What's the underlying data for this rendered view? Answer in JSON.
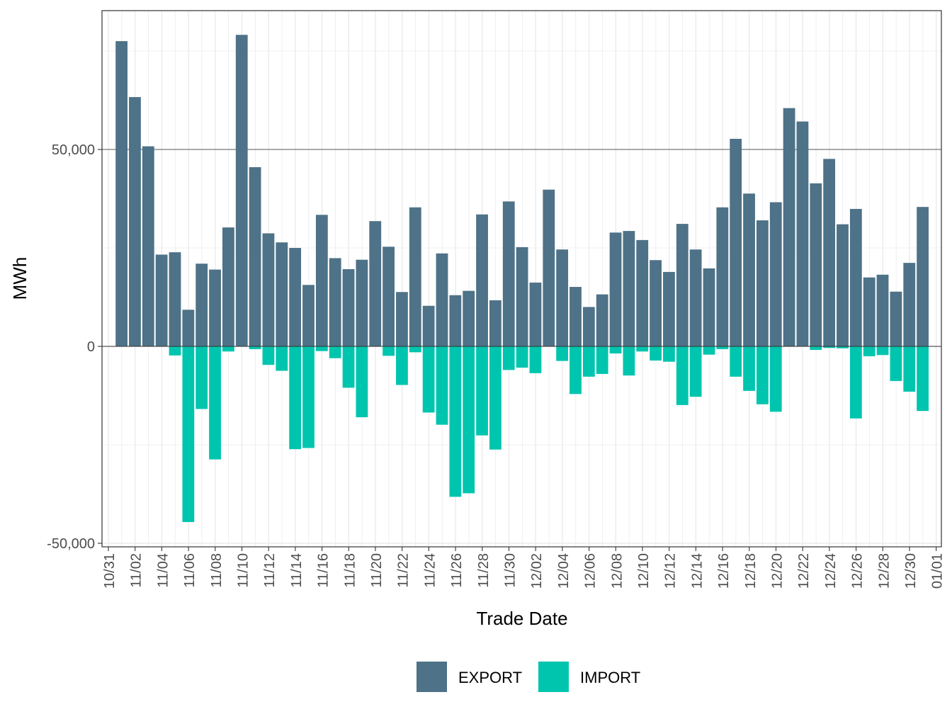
{
  "chart_data": {
    "type": "bar",
    "stacked": true,
    "xlabel": "Trade Date",
    "ylabel": "MWh",
    "ylim": [
      -50000,
      85000
    ],
    "y_ticks": [
      -50000,
      0,
      50000
    ],
    "y_tick_labels": [
      "-50,000",
      "0",
      "50,000"
    ],
    "x_tick_labels": [
      "10/31",
      "11/02",
      "11/04",
      "11/06",
      "11/08",
      "11/10",
      "11/12",
      "11/14",
      "11/16",
      "11/18",
      "11/20",
      "11/22",
      "11/24",
      "11/26",
      "11/28",
      "11/30",
      "12/02",
      "12/04",
      "12/06",
      "12/08",
      "12/10",
      "12/12",
      "12/14",
      "12/16",
      "12/18",
      "12/20",
      "12/22",
      "12/24",
      "12/26",
      "12/28",
      "12/30",
      "01/01"
    ],
    "legend_position": "bottom",
    "grid": true,
    "categories": [
      "11/01",
      "11/02",
      "11/03",
      "11/04",
      "11/05",
      "11/06",
      "11/07",
      "11/08",
      "11/09",
      "11/10",
      "11/11",
      "11/12",
      "11/13",
      "11/14",
      "11/15",
      "11/16",
      "11/17",
      "11/18",
      "11/19",
      "11/20",
      "11/21",
      "11/22",
      "11/23",
      "11/24",
      "11/25",
      "11/26",
      "11/27",
      "11/28",
      "11/29",
      "11/30",
      "12/01",
      "12/02",
      "12/03",
      "12/04",
      "12/05",
      "12/06",
      "12/07",
      "12/08",
      "12/09",
      "12/10",
      "12/11",
      "12/12",
      "12/13",
      "12/14",
      "12/15",
      "12/16",
      "12/17",
      "12/18",
      "12/19",
      "12/20",
      "12/21",
      "12/22",
      "12/23",
      "12/24",
      "12/25",
      "12/26",
      "12/27",
      "12/28",
      "12/29",
      "12/30",
      "12/31"
    ],
    "series": [
      {
        "name": "EXPORT",
        "color": "#4e7287",
        "values": [
          77500,
          63300,
          50800,
          23300,
          23900,
          9300,
          21000,
          19500,
          30200,
          79100,
          45500,
          28700,
          26400,
          25000,
          15600,
          33400,
          22400,
          19600,
          22000,
          31800,
          25300,
          13800,
          35300,
          10300,
          23600,
          13000,
          14100,
          33500,
          11700,
          36800,
          25200,
          16200,
          39800,
          24600,
          15100,
          10000,
          13200,
          28900,
          29300,
          27000,
          21900,
          18900,
          31100,
          24600,
          19800,
          35300,
          52700,
          38800,
          32000,
          36600,
          60500,
          57100,
          41400,
          47600,
          31000,
          34900,
          17500,
          18200,
          13900,
          21200,
          35400
        ]
      },
      {
        "name": "IMPORT",
        "color": "#00c5ae",
        "values": [
          0,
          0,
          0,
          0,
          -2300,
          -44600,
          -15900,
          -28700,
          -1300,
          0,
          -700,
          -4700,
          -6200,
          -26100,
          -25800,
          -1200,
          -3000,
          -10500,
          -18000,
          0,
          -2400,
          -9800,
          -1500,
          -16800,
          -19900,
          -38200,
          -37300,
          -22600,
          -26200,
          -6000,
          -5400,
          -6800,
          0,
          -3700,
          -12100,
          -7700,
          -7000,
          -1800,
          -7400,
          -1300,
          -3600,
          -3900,
          -14900,
          -12800,
          -2100,
          -700,
          -7700,
          -11300,
          -14700,
          -16600,
          0,
          0,
          -900,
          -400,
          -500,
          -18300,
          -2500,
          -2200,
          -8800,
          -11500,
          -16400
        ]
      }
    ]
  }
}
